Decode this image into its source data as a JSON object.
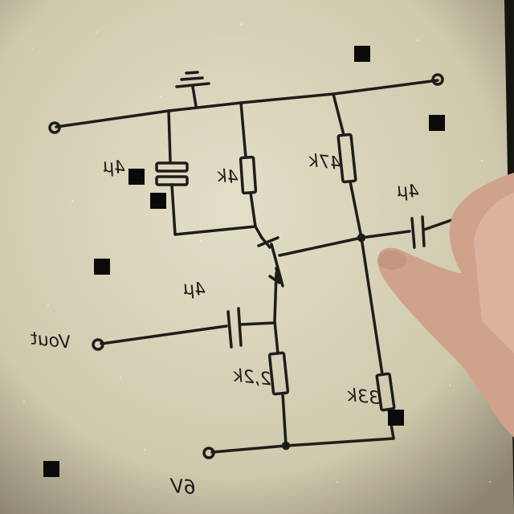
{
  "sheet": {
    "paper_color": "#d9d4bb",
    "ink_color": "#1e1d1a",
    "background_color": "#16140f",
    "skin_color": "#d7ad96"
  },
  "labels": {
    "capacitor_top": "4μ",
    "capacitor_left": "4μ",
    "r_collector": "4k",
    "r_bias_top": "47k",
    "capacitor_out": "4μ",
    "capacitor_in": "4μ",
    "input": "Vout",
    "r_emitter": "2,2k",
    "r_bias_bottom": "33k",
    "supply": "6V"
  },
  "components": [
    {
      "id": "C1",
      "kind": "capacitor",
      "label": "4μ"
    },
    {
      "id": "C2",
      "kind": "capacitor",
      "label": "4μ"
    },
    {
      "id": "C3",
      "kind": "capacitor",
      "label": "4μ"
    },
    {
      "id": "R1",
      "kind": "resistor",
      "label": "4k"
    },
    {
      "id": "R2",
      "kind": "resistor",
      "label": "47k"
    },
    {
      "id": "R3",
      "kind": "resistor",
      "label": "2,2k"
    },
    {
      "id": "R4",
      "kind": "resistor",
      "label": "33k"
    },
    {
      "id": "Q1",
      "kind": "transistor",
      "label": ""
    },
    {
      "id": "GND",
      "kind": "ground",
      "label": ""
    }
  ]
}
